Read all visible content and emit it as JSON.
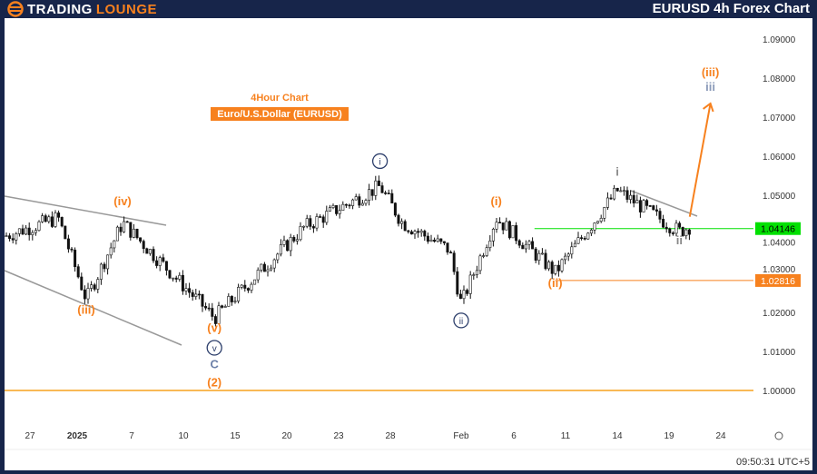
{
  "header": {
    "logo": "TradingLounge",
    "title": "EURUSD 4h Forex Chart"
  },
  "timestamp": "09:50:31 UTC+5",
  "chart_data": {
    "type": "candlestick",
    "title": "4Hour Chart",
    "subtitle": "Euro/U.S.Dollar (EURUSD)",
    "ylim": [
      0.995,
      1.095
    ],
    "y_ticks": [
      "1.09000",
      "1.08000",
      "1.07000",
      "1.06000",
      "1.05000",
      "1.04000",
      "1.03000",
      "1.02000",
      "1.01000",
      "1.00000"
    ],
    "x_ticks": [
      "27",
      "2025",
      "7",
      "10",
      "15",
      "20",
      "23",
      "28",
      "Feb",
      "6",
      "11",
      "14",
      "19",
      "24"
    ],
    "price_path": [
      [
        "Dec 24",
        1.0395
      ],
      [
        "Dec 30",
        1.0442
      ],
      [
        "Jan 2",
        1.0233
      ],
      [
        "Jan 6",
        1.043
      ],
      [
        "Jan 13",
        1.0186
      ],
      [
        "Jan 21",
        1.0418
      ],
      [
        "Jan 27",
        1.0523
      ],
      [
        "Jan 29",
        1.043
      ],
      [
        "Feb 2",
        1.036
      ],
      [
        "Feb 3",
        1.0221
      ],
      [
        "Feb 5",
        1.0442
      ],
      [
        "Feb 10",
        1.0302
      ],
      [
        "Feb 14",
        1.0512
      ],
      [
        "Feb 20",
        1.0407
      ],
      [
        "Feb 21",
        1.042
      ]
    ],
    "levels": [
      {
        "label": "1.04146",
        "value": 1.04146,
        "color": "#00e000"
      },
      {
        "label": "1.02816",
        "value": 1.02816,
        "color": "#f7811e"
      },
      {
        "value": 1.0,
        "color": "#f7a21e"
      }
    ],
    "wave_labels": [
      {
        "text": "(iv)",
        "date": "Jan 6",
        "price": 1.0475,
        "color": "#f7811e"
      },
      {
        "text": "(iii)",
        "date": "Jan 2",
        "price": 1.0197,
        "color": "#f7811e"
      },
      {
        "text": "(v)",
        "date": "Jan 13",
        "price": 1.015,
        "color": "#f7811e"
      },
      {
        "text": "v",
        "date": "Jan 13",
        "price": 1.01,
        "color": "#2c3e6b",
        "circle": true
      },
      {
        "text": "C",
        "date": "Jan 13",
        "price": 1.0057,
        "color": "#6b7fa8"
      },
      {
        "text": "(2)",
        "date": "Jan 13",
        "price": 1.001,
        "color": "#f7811e"
      },
      {
        "text": "i",
        "date": "Jan 27",
        "price": 1.0578,
        "color": "#2c3e6b",
        "circle": true
      },
      {
        "text": "ii",
        "date": "Feb 3",
        "price": 1.017,
        "color": "#2c3e6b",
        "circle": true
      },
      {
        "text": "(i)",
        "date": "Feb 5",
        "price": 1.0475,
        "color": "#f7811e"
      },
      {
        "text": "(ii)",
        "date": "Feb 10",
        "price": 1.0265,
        "color": "#f7811e"
      },
      {
        "text": "i",
        "date": "Feb 14",
        "price": 1.055,
        "color": "#888888"
      },
      {
        "text": "ii",
        "date": "Feb 20",
        "price": 1.0375,
        "color": "#888888"
      },
      {
        "text": "(iii)",
        "date": "Feb 23",
        "price": 1.0805,
        "color": "#f7811e"
      },
      {
        "text": "iii",
        "date": "Feb 23",
        "price": 1.0775,
        "color": "#8a9ab8"
      }
    ],
    "projection": {
      "from": [
        "Feb 21",
        1.0445
      ],
      "to": [
        "Feb 23",
        1.0735
      ],
      "color": "#f7811e"
    }
  }
}
